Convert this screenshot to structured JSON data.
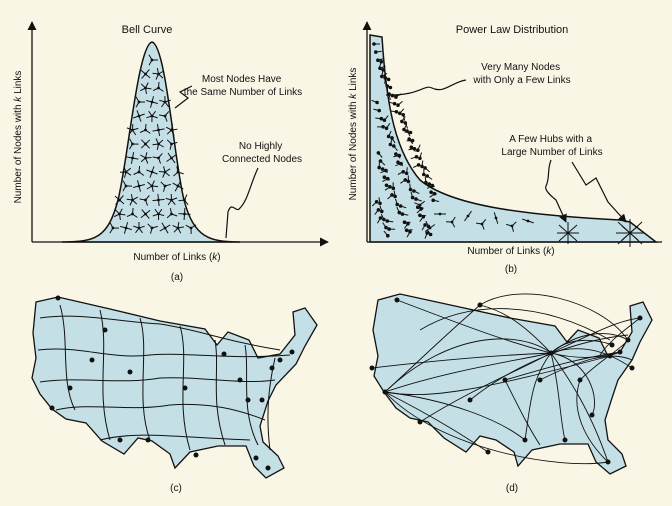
{
  "colors": {
    "background": "#faf6e6",
    "fill": "#c4e0e6",
    "ink": "#111111"
  },
  "panel_a": {
    "title": "Bell Curve",
    "xlabel": "Number of Links (k)",
    "ylabel": "Number of Nodes with k Links",
    "annotation_1": [
      "Most Nodes Have",
      "the Same Number of Links"
    ],
    "annotation_2": [
      "No Highly",
      "Connected Nodes"
    ],
    "caption": "(a)"
  },
  "panel_b": {
    "title": "Power Law Distribution",
    "xlabel": "Number of Links (k)",
    "ylabel": "Number of Nodes with k Links",
    "annotation_1": [
      "Very Many Nodes",
      "with Only a Few Links"
    ],
    "annotation_2": [
      "A Few Hubs with a",
      "Large Number of Links"
    ],
    "caption": "(b)"
  },
  "panel_c": {
    "caption": "(c)"
  },
  "panel_d": {
    "caption": "(d)"
  }
}
